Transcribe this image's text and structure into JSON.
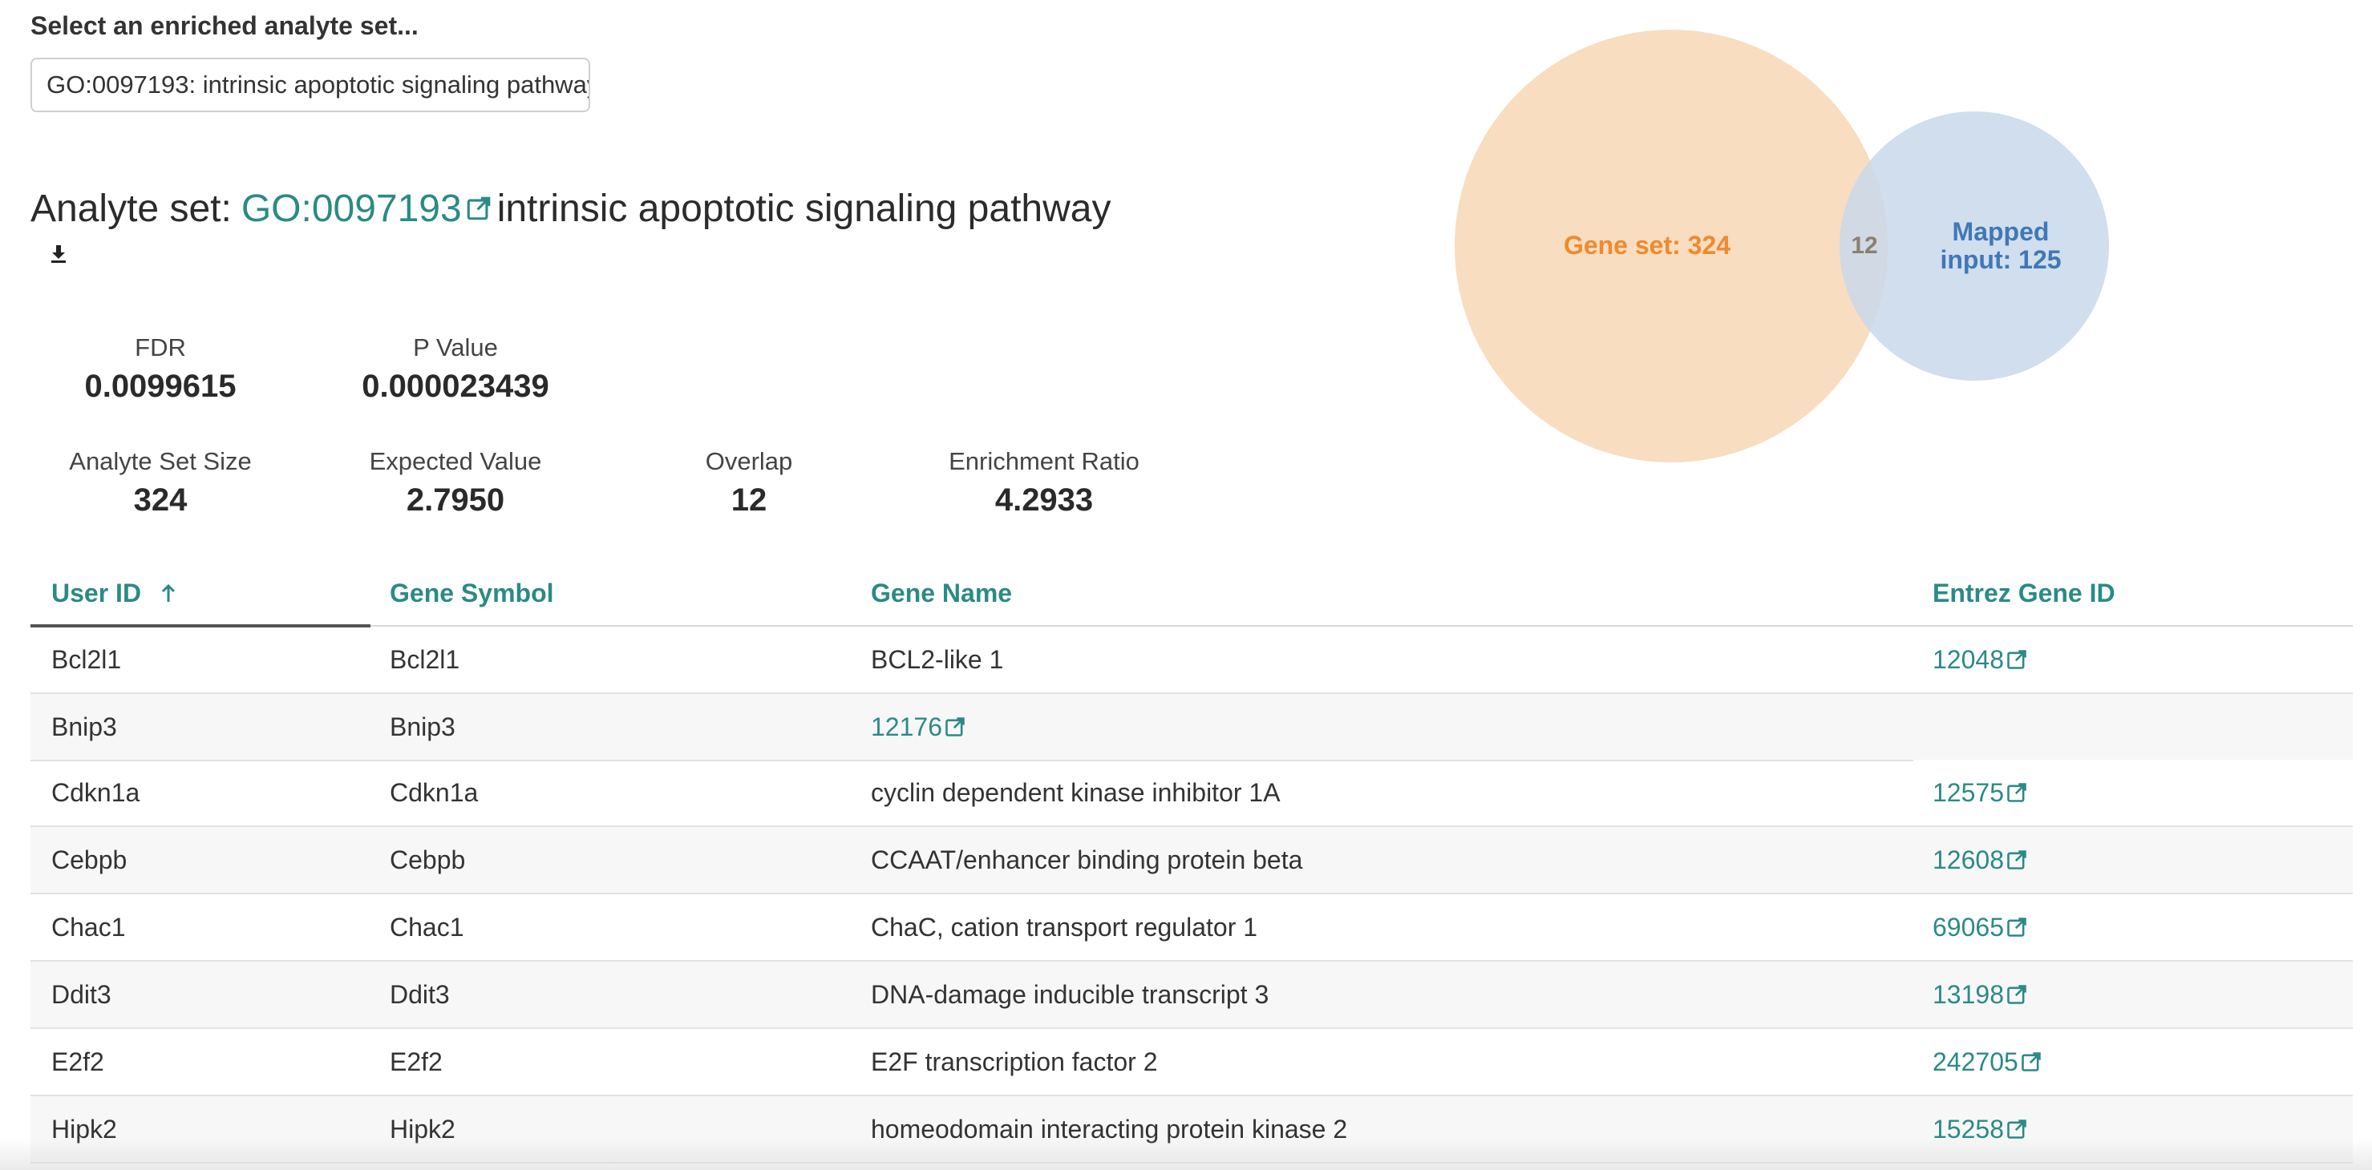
{
  "selector": {
    "label": "Select an enriched analyte set...",
    "value": "GO:0097193: intrinsic apoptotic signaling pathway"
  },
  "title": {
    "prefix": "Analyte set:",
    "id": "GO:0097193",
    "name": "intrinsic apoptotic signaling pathway"
  },
  "icons": {
    "external_link": "external-link-icon",
    "download": "download-icon",
    "sort": "sort-ascending-arrow-icon"
  },
  "stats": {
    "fdr_label": "FDR",
    "fdr_value": "0.0099615",
    "p_label": "P Value",
    "p_value": "0.000023439",
    "size_label": "Analyte Set Size",
    "size_value": "324",
    "expected_label": "Expected Value",
    "expected_value": "2.7950",
    "overlap_label": "Overlap",
    "overlap_value": "12",
    "ratio_label": "Enrichment Ratio",
    "ratio_value": "4.2933"
  },
  "venn": {
    "gene_set_label": "Gene set: 324",
    "overlap_label": "12",
    "mapped_line1": "Mapped",
    "mapped_line2": "input: 125",
    "gene_set_color": "#f8ddc0",
    "mapped_color": "#c9d8ea",
    "gene_set_text_color": "#ef8a2e",
    "mapped_text_color": "#3f78b8"
  },
  "table": {
    "headers": {
      "user_id": "User ID",
      "gene_symbol": "Gene Symbol",
      "gene_name": "Gene Name",
      "entrez": "Entrez Gene ID"
    },
    "rows": [
      {
        "user_id": "Bcl2l1",
        "symbol": "Bcl2l1",
        "name": "BCL2-like 1",
        "entrez": "12048"
      },
      {
        "user_id": "Bnip3",
        "symbol": "Bnip3",
        "name": "12176",
        "entrez": ""
      },
      {
        "user_id": "Cdkn1a",
        "symbol": "Cdkn1a",
        "name": "cyclin dependent kinase inhibitor 1A",
        "entrez": "12575"
      },
      {
        "user_id": "Cebpb",
        "symbol": "Cebpb",
        "name": "CCAAT/enhancer binding protein beta",
        "entrez": "12608"
      },
      {
        "user_id": "Chac1",
        "symbol": "Chac1",
        "name": "ChaC, cation transport regulator 1",
        "entrez": "69065"
      },
      {
        "user_id": "Ddit3",
        "symbol": "Ddit3",
        "name": "DNA-damage inducible transcript 3",
        "entrez": "13198"
      },
      {
        "user_id": "E2f2",
        "symbol": "E2f2",
        "name": "E2F transcription factor 2",
        "entrez": "242705"
      },
      {
        "user_id": "Hipk2",
        "symbol": "Hipk2",
        "name": "homeodomain interacting protein kinase 2",
        "entrez": "15258"
      }
    ]
  },
  "colors": {
    "accent": "#2b8a86"
  }
}
